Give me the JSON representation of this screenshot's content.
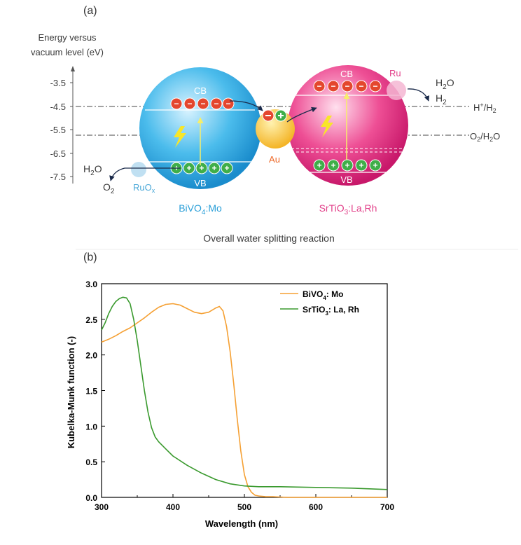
{
  "panel_a": {
    "label": "(a)",
    "y_title_line1": "Energy versus",
    "y_title_line2": "vacuum level (eV)",
    "y_ticks": [
      "-3.5",
      "-4.5",
      "-5.5",
      "-6.5",
      "-7.5"
    ],
    "caption": "Overall water splitting reaction",
    "bivo4": {
      "name": "BiVO",
      "name_sub": "4",
      "name_suffix": ":Mo",
      "cb": "CB",
      "vb": "VB",
      "color": "#29a9e0"
    },
    "srtio3": {
      "name": "SrTiO",
      "name_sub": "3",
      "name_suffix": ":La,Rh",
      "cb": "CB",
      "vb": "VB",
      "color": "#e8237a"
    },
    "au_label": "Au",
    "ru_label": "Ru",
    "ruox_label": "RuO",
    "ruox_sub": "x",
    "h2o_left": "H",
    "h2o_left_sub": "2",
    "h2o_left_suffix": "O",
    "o2_left": "O",
    "o2_left_sub": "2",
    "h2o_right": "H",
    "h2o_right_sub": "2",
    "h2o_right_suffix": "O",
    "h2_right": "H",
    "h2_right_sub": "2",
    "h_level": "H",
    "h_level_sup": "+",
    "h_level_mid": "/H",
    "h_level_sub": "2",
    "o_level": "O",
    "o_level_sub": "2",
    "o_level_suffix": "/H",
    "o_level_sub2": "2",
    "o_level_end": "O",
    "electron_sign": "−",
    "hole_sign": "+"
  },
  "panel_b": {
    "label": "(b)"
  },
  "chart_data": {
    "type": "line",
    "xlabel": "Wavelength (nm)",
    "ylabel": "Kubelka-Munk function (-)",
    "xlim": [
      300,
      700
    ],
    "ylim": [
      0,
      3.0
    ],
    "x_ticks": [
      "300",
      "400",
      "500",
      "600",
      "700"
    ],
    "y_ticks": [
      "0.0",
      "0.5",
      "1.0",
      "1.5",
      "2.0",
      "2.5",
      "3.0"
    ],
    "grid": false,
    "legend_position": "top-right",
    "series": [
      {
        "name": "BiVO4: Mo",
        "legend_main": "BiVO",
        "legend_sub": "4",
        "legend_suffix": ": Mo",
        "color": "#f5a033",
        "x": [
          300,
          310,
          320,
          330,
          340,
          350,
          360,
          370,
          380,
          390,
          400,
          410,
          420,
          430,
          440,
          450,
          460,
          465,
          470,
          475,
          480,
          485,
          490,
          495,
          500,
          505,
          510,
          515,
          520,
          530,
          540,
          560,
          600,
          650,
          700
        ],
        "y": [
          2.18,
          2.22,
          2.27,
          2.33,
          2.38,
          2.45,
          2.52,
          2.6,
          2.67,
          2.71,
          2.72,
          2.7,
          2.65,
          2.6,
          2.58,
          2.6,
          2.66,
          2.68,
          2.62,
          2.4,
          2.05,
          1.6,
          1.1,
          0.65,
          0.32,
          0.15,
          0.07,
          0.03,
          0.02,
          0.01,
          0.01,
          0.0,
          0.0,
          0.0,
          0.0
        ]
      },
      {
        "name": "SrTiO3: La, Rh",
        "legend_main": "SrTiO",
        "legend_sub": "3",
        "legend_suffix": ": La, Rh",
        "color": "#3a9a2e",
        "x": [
          300,
          305,
          310,
          315,
          320,
          325,
          330,
          335,
          340,
          345,
          350,
          355,
          360,
          365,
          370,
          375,
          380,
          390,
          400,
          420,
          440,
          460,
          480,
          500,
          520,
          550,
          600,
          650,
          700
        ],
        "y": [
          2.35,
          2.45,
          2.58,
          2.68,
          2.75,
          2.79,
          2.81,
          2.8,
          2.72,
          2.5,
          2.2,
          1.85,
          1.5,
          1.2,
          0.98,
          0.85,
          0.78,
          0.68,
          0.58,
          0.45,
          0.34,
          0.25,
          0.19,
          0.16,
          0.15,
          0.15,
          0.14,
          0.13,
          0.11
        ]
      }
    ]
  }
}
